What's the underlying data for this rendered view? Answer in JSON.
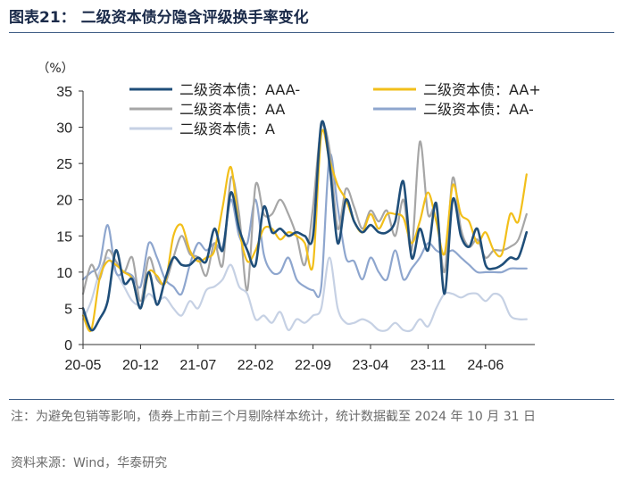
{
  "header": {
    "title": "图表21：  二级资本债分隐含评级换手率变化"
  },
  "footer": {
    "note": "注：为避免包销等影响，债券上市前三个月剔除样本统计，统计数据截至 2024 年 10 月 31 日",
    "source": "资料来源：Wind，华泰研究"
  },
  "chart_data": {
    "type": "line",
    "ylabel": "（%）",
    "ylim": [
      0,
      35
    ],
    "yticks": [
      0,
      5,
      10,
      15,
      20,
      25,
      30,
      35
    ],
    "xlim": [
      0,
      55
    ],
    "xticks": [
      {
        "pos": 0,
        "label": "20-05"
      },
      {
        "pos": 7,
        "label": "20-12"
      },
      {
        "pos": 14,
        "label": "21-07"
      },
      {
        "pos": 21,
        "label": "22-02"
      },
      {
        "pos": 28,
        "label": "22-09"
      },
      {
        "pos": 35,
        "label": "23-04"
      },
      {
        "pos": 42,
        "label": "23-11"
      },
      {
        "pos": 49,
        "label": "24-06"
      }
    ],
    "x": [
      0,
      1,
      2,
      3,
      4,
      5,
      6,
      7,
      8,
      9,
      10,
      11,
      12,
      13,
      14,
      15,
      16,
      17,
      18,
      19,
      20,
      21,
      22,
      23,
      24,
      25,
      26,
      27,
      28,
      29,
      30,
      31,
      32,
      33,
      34,
      35,
      36,
      37,
      38,
      39,
      40,
      41,
      42,
      43,
      44,
      45,
      46,
      47,
      48,
      49,
      50,
      51,
      52,
      53,
      54,
      55
    ],
    "series": [
      {
        "name": "二级资本债：AAA-",
        "color": "#1f4e79",
        "width": 2.6,
        "values": [
          5,
          2,
          3.5,
          6,
          13,
          8.5,
          9,
          5,
          10,
          5.5,
          9,
          12,
          11,
          11,
          12,
          11.5,
          16,
          13,
          21,
          16,
          13,
          11,
          19,
          15.5,
          16,
          15,
          15.5,
          15,
          15,
          30.5,
          25,
          14,
          20,
          17,
          15.5,
          16.5,
          15.5,
          15.5,
          17,
          22.5,
          12,
          16,
          13,
          19.5,
          7,
          20,
          15,
          13.5,
          16,
          11,
          10.5,
          11,
          12,
          12,
          15.5,
          null
        ]
      },
      {
        "name": "二级资本债：AA+",
        "color": "#f2bf1a",
        "width": 2.2,
        "values": [
          4,
          2,
          9,
          11.5,
          11,
          10,
          9,
          5,
          10,
          9.5,
          8.5,
          15,
          16.5,
          13,
          11.5,
          12,
          13,
          19,
          24.5,
          16,
          11.5,
          13,
          16,
          16,
          14.5,
          15.5,
          15,
          14,
          11,
          29,
          25.5,
          22,
          20,
          17,
          15.5,
          18,
          16,
          18,
          18,
          17.5,
          14,
          17,
          21,
          17,
          12.5,
          22,
          18,
          17,
          14,
          15.5,
          13,
          12.5,
          18,
          17,
          23.5,
          null
        ]
      },
      {
        "name": "二级资本债：AA",
        "color": "#a6a6a6",
        "width": 2.2,
        "values": [
          7,
          11,
          9,
          13,
          11.5,
          10,
          12,
          6,
          12,
          9,
          8.5,
          12,
          15,
          12.5,
          12,
          9.5,
          14,
          11,
          23,
          18,
          7.5,
          22,
          18,
          18,
          20,
          18,
          15,
          11,
          19,
          30,
          27,
          16,
          21.5,
          19,
          16,
          18.5,
          17,
          18.5,
          15,
          20,
          13,
          28,
          18,
          19,
          10,
          23,
          16,
          13.5,
          14.5,
          12,
          13,
          13,
          13.5,
          14.5,
          18,
          null
        ]
      },
      {
        "name": "二级资本债：AA-",
        "color": "#8ea6ce",
        "width": 2.2,
        "values": [
          9,
          10,
          11,
          16.5,
          10,
          10,
          9.5,
          8,
          14,
          12,
          9,
          8,
          7,
          11,
          14,
          13,
          14,
          13.5,
          20,
          15,
          14,
          20,
          12.5,
          10,
          10,
          12,
          9,
          8,
          7.5,
          8,
          26,
          19,
          12,
          11.5,
          9,
          12,
          10,
          9,
          13,
          9,
          10.5,
          12,
          14,
          13,
          12.5,
          13,
          12,
          11,
          10,
          10,
          10,
          10,
          10.5,
          10.5,
          10.5,
          null
        ]
      },
      {
        "name": "二级资本债：A",
        "color": "#c6d1e4",
        "width": 2.2,
        "values": [
          3.5,
          6,
          10,
          12,
          10,
          8,
          6,
          5.5,
          7,
          6,
          6.5,
          5,
          4,
          6,
          5,
          7.5,
          8,
          9,
          11,
          8,
          7,
          3.5,
          4,
          3,
          4.5,
          2,
          3.5,
          3,
          4,
          5,
          12,
          5,
          3,
          3,
          3.5,
          3,
          2,
          2,
          3,
          2,
          2,
          3.5,
          2.5,
          5,
          7,
          7,
          6.5,
          7,
          7,
          6,
          7,
          6.5,
          4,
          3.5,
          3.5,
          null
        ]
      }
    ]
  }
}
